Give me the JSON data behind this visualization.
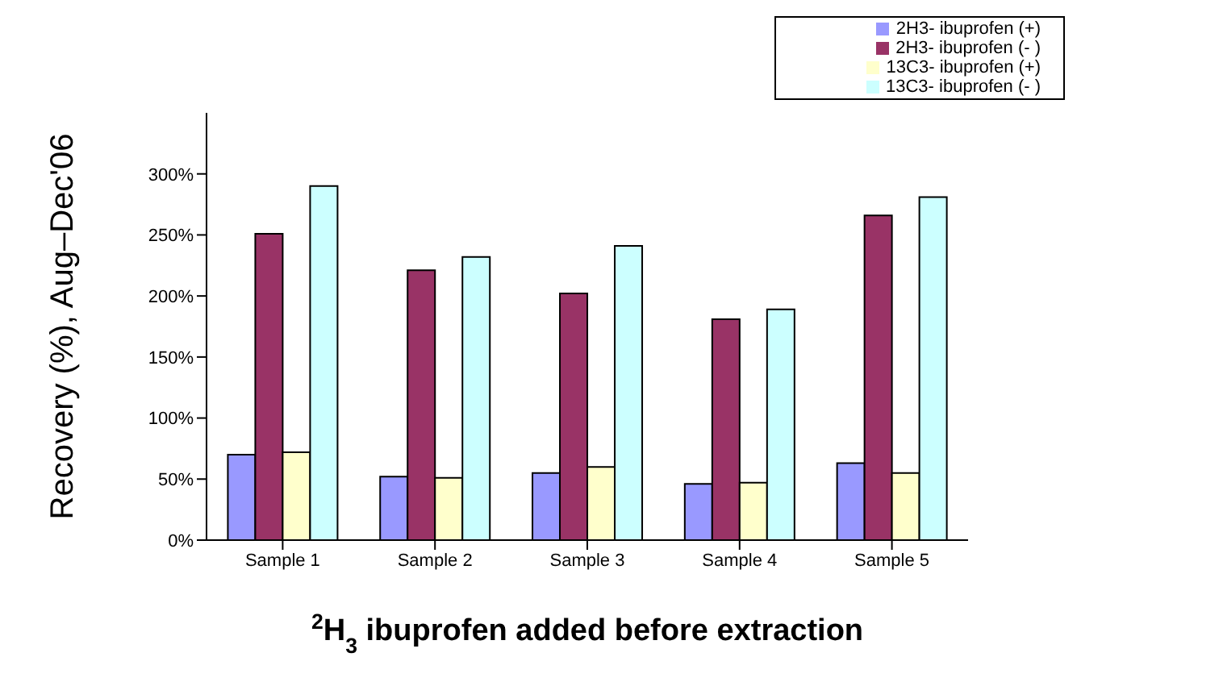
{
  "chart_data": {
    "type": "bar",
    "categories": [
      "Sample 1",
      "Sample 2",
      "Sample 3",
      "Sample 4",
      "Sample 5"
    ],
    "series": [
      {
        "name": "2H3- ibuprofen (+)",
        "color": "#9999ff",
        "values": [
          70,
          52,
          55,
          46,
          63
        ]
      },
      {
        "name": "2H3- ibuprofen (- )",
        "color": "#993366",
        "values": [
          251,
          221,
          202,
          181,
          266
        ]
      },
      {
        "name": "13C3- ibuprofen (+)",
        "color": "#ffffcc",
        "values": [
          72,
          51,
          60,
          47,
          55
        ]
      },
      {
        "name": "13C3- ibuprofen (- )",
        "color": "#ccffff",
        "values": [
          290,
          232,
          241,
          189,
          281
        ]
      }
    ],
    "xlabel": "$^{2}$H$_{3}$ ibuprofen added before extraction",
    "ylabel": "Recovery (%),  Aug–Dec'06",
    "ylim": [
      0,
      350
    ],
    "yticks": [
      {
        "value": 0,
        "label": "0%"
      },
      {
        "value": 50,
        "label": "50%"
      },
      {
        "value": 100,
        "label": "100%"
      },
      {
        "value": 150,
        "label": "150%"
      },
      {
        "value": 200,
        "label": "200%"
      },
      {
        "value": 250,
        "label": "250%"
      },
      {
        "value": 300,
        "label": "300%"
      }
    ],
    "legend": "top right",
    "grid": false
  }
}
